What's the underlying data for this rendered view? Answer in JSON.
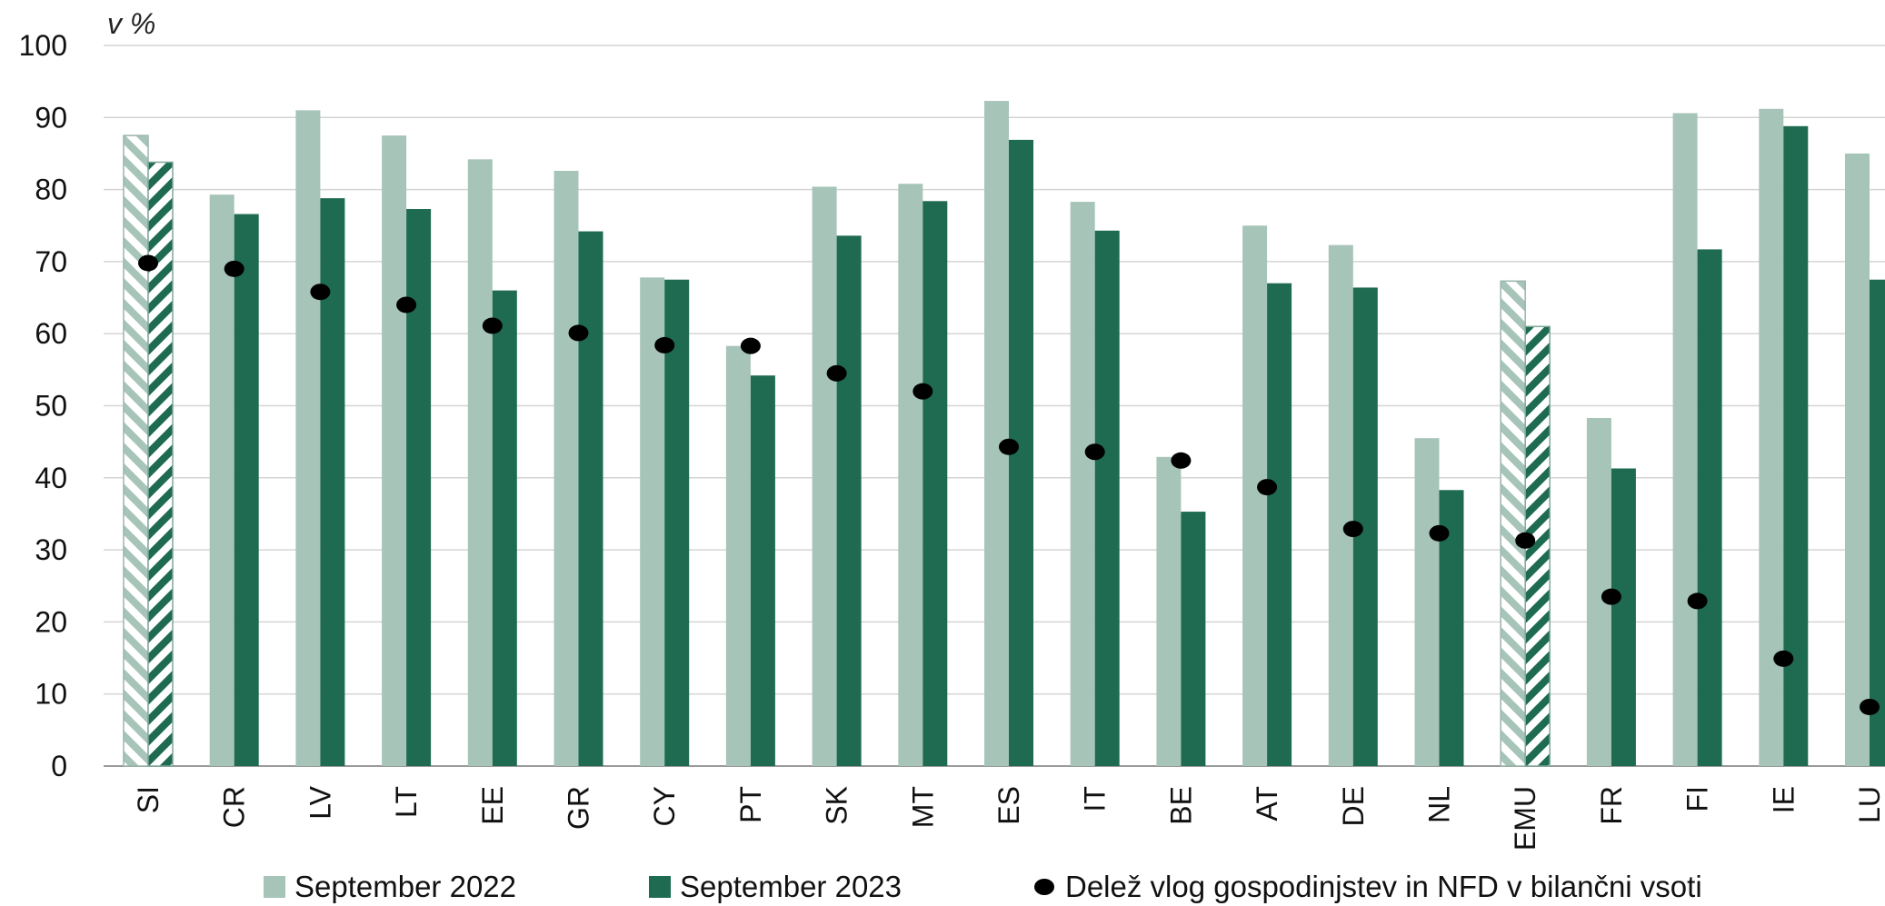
{
  "chart_data": {
    "type": "bar",
    "unit_label": "v %",
    "ylim": [
      0,
      100
    ],
    "yticks": [
      0,
      10,
      20,
      30,
      40,
      50,
      60,
      70,
      80,
      90,
      100
    ],
    "grid": true,
    "legend_position": "bottom",
    "categories": [
      "SI",
      "CR",
      "LV",
      "LT",
      "EE",
      "GR",
      "CY",
      "PT",
      "SK",
      "MT",
      "ES",
      "IT",
      "BE",
      "AT",
      "DE",
      "NL",
      "EMU",
      "FR",
      "FI",
      "IE",
      "LU"
    ],
    "highlighted_categories": [
      "SI",
      "EMU"
    ],
    "series": [
      {
        "name": "September 2022",
        "kind": "bar",
        "color": "#a7c4b9",
        "values": [
          87.5,
          79.3,
          91.0,
          87.5,
          84.2,
          82.6,
          67.8,
          58.3,
          80.4,
          80.8,
          92.3,
          78.3,
          42.9,
          75.0,
          72.3,
          45.5,
          67.3,
          48.3,
          90.6,
          91.2,
          85.0
        ]
      },
      {
        "name": "September 2023",
        "kind": "bar",
        "color": "#1e6b52",
        "values": [
          83.8,
          76.6,
          78.8,
          77.3,
          66.0,
          74.2,
          67.5,
          54.2,
          73.6,
          78.4,
          86.9,
          74.3,
          35.3,
          67.0,
          66.4,
          38.3,
          61.0,
          41.3,
          71.7,
          88.8,
          67.5
        ]
      },
      {
        "name": "Delež vlog gospodinjstev in NFD v bilančni vsoti",
        "kind": "dot",
        "color": "#000000",
        "values": [
          69.8,
          69.0,
          65.8,
          64.0,
          61.1,
          60.1,
          58.4,
          58.3,
          54.5,
          52.0,
          44.3,
          43.6,
          42.4,
          38.7,
          32.9,
          32.3,
          31.3,
          23.5,
          22.9,
          14.9,
          8.2
        ]
      }
    ]
  }
}
